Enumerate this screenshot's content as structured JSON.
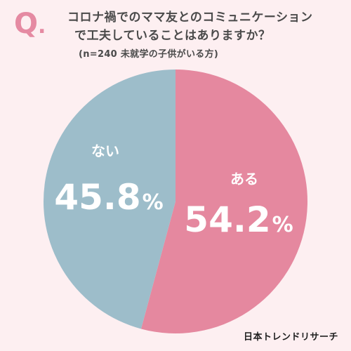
{
  "header": {
    "q_mark": "Q",
    "q_dot": ".",
    "question_line1": "コロナ禍でのママ友とのコミュニケーション",
    "question_line2": "で工夫していることはありますか？",
    "subtitle": "(n=240 未就学の子供がいる方)"
  },
  "brand": {
    "name": "日本トレンドリサーチ"
  },
  "colors": {
    "background": "#fdeff1",
    "accent": "#e58aa2",
    "aru": "#e5889f",
    "nai": "#9dbdca"
  },
  "chart_data": {
    "type": "pie",
    "categories": [
      "ある",
      "ない"
    ],
    "values": [
      54.2,
      45.8
    ],
    "value_suffix": "%",
    "start": "top",
    "direction": "clockwise",
    "labels_inside": true,
    "legend": "none"
  }
}
